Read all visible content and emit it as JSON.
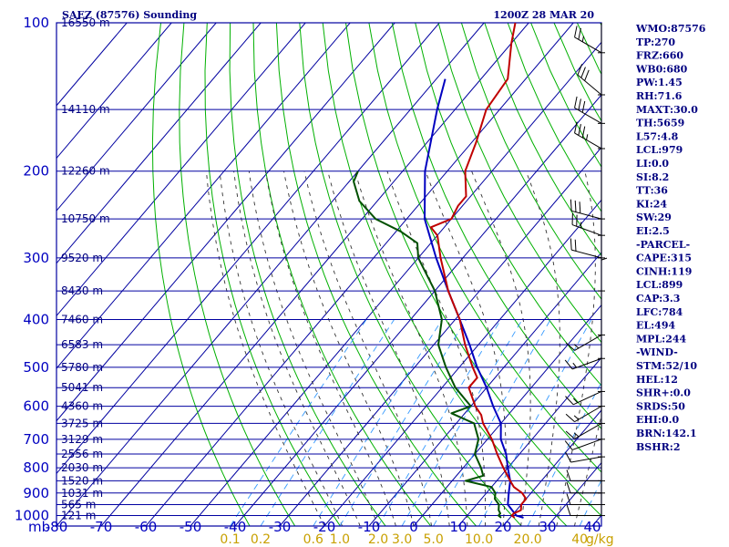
{
  "chart_data": {
    "type": "line",
    "title": "SAEZ (87576) Sounding",
    "valid_time": "1200Z 28 MAR 20",
    "pressure_unit_label": "mb",
    "mixing_ratio_unit_label": "g/kg",
    "pressure_levels": [
      100,
      200,
      300,
      400,
      500,
      600,
      700,
      800,
      900,
      1000
    ],
    "temperature_ticks": [
      -80,
      -70,
      -60,
      -50,
      -40,
      -30,
      -20,
      -10,
      0,
      10,
      20,
      30,
      40
    ],
    "mixing_ratio_ticks": [
      "0.1",
      "0.2",
      "0.6",
      "1.0",
      "2.0",
      "3.0",
      "5.0",
      "10.0",
      "20.0",
      "40"
    ],
    "height_labels": [
      {
        "p": 100,
        "text": "16550 m"
      },
      {
        "p": 150,
        "text": "14110 m"
      },
      {
        "p": 200,
        "text": "12260 m"
      },
      {
        "p": 250,
        "text": "10750 m"
      },
      {
        "p": 300,
        "text": "9520 m"
      },
      {
        "p": 350,
        "text": "8430 m"
      },
      {
        "p": 400,
        "text": "7460 m"
      },
      {
        "p": 450,
        "text": "6583 m"
      },
      {
        "p": 500,
        "text": "5780 m"
      },
      {
        "p": 550,
        "text": "5041 m"
      },
      {
        "p": 600,
        "text": "4360 m"
      },
      {
        "p": 650,
        "text": "3725 m"
      },
      {
        "p": 700,
        "text": "3129 m"
      },
      {
        "p": 750,
        "text": "2556 m"
      },
      {
        "p": 800,
        "text": "2030 m"
      },
      {
        "p": 850,
        "text": "1520 m"
      },
      {
        "p": 900,
        "text": "1031 m"
      },
      {
        "p": 950,
        "text": "565 m"
      },
      {
        "p": 1000,
        "text": "121 m"
      }
    ],
    "temperature_profile": [
      {
        "p": 1010,
        "t": 21
      },
      {
        "p": 1000,
        "t": 20
      },
      {
        "p": 990,
        "t": 20
      },
      {
        "p": 975,
        "t": 21
      },
      {
        "p": 950,
        "t": 20
      },
      {
        "p": 925,
        "t": 20
      },
      {
        "p": 900,
        "t": 18
      },
      {
        "p": 875,
        "t": 15
      },
      {
        "p": 850,
        "t": 13
      },
      {
        "p": 800,
        "t": 9
      },
      {
        "p": 750,
        "t": 5
      },
      {
        "p": 700,
        "t": 1
      },
      {
        "p": 650,
        "t": -4
      },
      {
        "p": 625,
        "t": -6
      },
      {
        "p": 600,
        "t": -9
      },
      {
        "p": 550,
        "t": -14
      },
      {
        "p": 525,
        "t": -14
      },
      {
        "p": 500,
        "t": -17
      },
      {
        "p": 450,
        "t": -23
      },
      {
        "p": 400,
        "t": -29
      },
      {
        "p": 350,
        "t": -37
      },
      {
        "p": 300,
        "t": -45
      },
      {
        "p": 270,
        "t": -50
      },
      {
        "p": 260,
        "t": -53
      },
      {
        "p": 250,
        "t": -50
      },
      {
        "p": 235,
        "t": -51
      },
      {
        "p": 225,
        "t": -51
      },
      {
        "p": 200,
        "t": -56
      },
      {
        "p": 175,
        "t": -59
      },
      {
        "p": 150,
        "t": -63
      },
      {
        "p": 130,
        "t": -64
      },
      {
        "p": 110,
        "t": -70
      },
      {
        "p": 100,
        "t": -73
      }
    ],
    "dewpoint_profile": [
      {
        "p": 1010,
        "t": 18
      },
      {
        "p": 1000,
        "t": 17
      },
      {
        "p": 990,
        "t": 17
      },
      {
        "p": 975,
        "t": 16
      },
      {
        "p": 950,
        "t": 15
      },
      {
        "p": 925,
        "t": 13
      },
      {
        "p": 900,
        "t": 12
      },
      {
        "p": 875,
        "t": 10
      },
      {
        "p": 850,
        "t": 3
      },
      {
        "p": 830,
        "t": 6
      },
      {
        "p": 800,
        "t": 4
      },
      {
        "p": 750,
        "t": 0
      },
      {
        "p": 700,
        "t": -2
      },
      {
        "p": 650,
        "t": -6
      },
      {
        "p": 620,
        "t": -13
      },
      {
        "p": 600,
        "t": -10
      },
      {
        "p": 550,
        "t": -17
      },
      {
        "p": 500,
        "t": -23
      },
      {
        "p": 450,
        "t": -29
      },
      {
        "p": 400,
        "t": -33
      },
      {
        "p": 350,
        "t": -40
      },
      {
        "p": 300,
        "t": -50
      },
      {
        "p": 280,
        "t": -53
      },
      {
        "p": 265,
        "t": -59
      },
      {
        "p": 250,
        "t": -67
      },
      {
        "p": 230,
        "t": -74
      },
      {
        "p": 210,
        "t": -79
      },
      {
        "p": 200,
        "t": -80
      }
    ],
    "parcel_profile": [
      {
        "p": 1010,
        "t": 23
      },
      {
        "p": 1000,
        "t": 21
      },
      {
        "p": 950,
        "t": 17
      },
      {
        "p": 900,
        "t": 15
      },
      {
        "p": 850,
        "t": 13
      },
      {
        "p": 800,
        "t": 10
      },
      {
        "p": 750,
        "t": 7
      },
      {
        "p": 700,
        "t": 3
      },
      {
        "p": 650,
        "t": 0
      },
      {
        "p": 600,
        "t": -5
      },
      {
        "p": 550,
        "t": -10
      },
      {
        "p": 500,
        "t": -16
      },
      {
        "p": 450,
        "t": -22
      },
      {
        "p": 400,
        "t": -29
      },
      {
        "p": 350,
        "t": -37
      },
      {
        "p": 300,
        "t": -46
      },
      {
        "p": 250,
        "t": -56
      },
      {
        "p": 200,
        "t": -65
      },
      {
        "p": 150,
        "t": -74
      },
      {
        "p": 130,
        "t": -78
      }
    ],
    "wind_barbs": [
      {
        "p": 115,
        "dir": 300,
        "spd": 25
      },
      {
        "p": 140,
        "dir": 310,
        "spd": 30
      },
      {
        "p": 160,
        "dir": 300,
        "spd": 30
      },
      {
        "p": 180,
        "dir": 300,
        "spd": 35
      },
      {
        "p": 250,
        "dir": 285,
        "spd": 30
      },
      {
        "p": 270,
        "dir": 290,
        "spd": 25
      },
      {
        "p": 300,
        "dir": 285,
        "spd": 20
      },
      {
        "p": 350,
        "dir": 0,
        "spd": 5
      },
      {
        "p": 430,
        "dir": 240,
        "spd": 15
      },
      {
        "p": 480,
        "dir": 250,
        "spd": 15
      },
      {
        "p": 560,
        "dir": 245,
        "spd": 15
      },
      {
        "p": 600,
        "dir": 240,
        "spd": 15
      },
      {
        "p": 650,
        "dir": 240,
        "spd": 15
      },
      {
        "p": 700,
        "dir": 250,
        "spd": 10
      },
      {
        "p": 760,
        "dir": 260,
        "spd": 10
      },
      {
        "p": 850,
        "dir": 270,
        "spd": 10
      },
      {
        "p": 900,
        "dir": 270,
        "spd": 10
      },
      {
        "p": 950,
        "dir": 270,
        "spd": 10
      },
      {
        "p": 1000,
        "dir": 270,
        "spd": 10
      }
    ],
    "indices": [
      "WMO:87576",
      "TP:270",
      "FRZ:660",
      "WB0:680",
      "PW:1.45",
      "RH:71.6",
      "MAXT:30.0",
      "TH:5659",
      "L57:4.8",
      "LCL:979",
      "LI:0.0",
      "SI:8.2",
      "TT:36",
      "KI:24",
      "SW:29",
      "EI:2.5",
      "-PARCEL-",
      "CAPE:315",
      "CINH:119",
      "LCL:899",
      "CAP:3.3",
      "LFC:784",
      "EL:494",
      "MPL:244",
      "-WIND-",
      "STM:52/10",
      "HEL:12",
      "SHR+:0.0",
      "SRDS:50",
      "EHI:0.0",
      "BRN:142.1",
      "BSHR:2"
    ],
    "colors": {
      "grid": "#0000a0",
      "dry_adiabat": "#00b000",
      "moist_adiabat": "#333333",
      "mixing_ratio": "#3399ff",
      "temperature": "#c00000",
      "dewpoint": "#005000",
      "parcel": "#0000c0",
      "labels": "#000080"
    }
  }
}
